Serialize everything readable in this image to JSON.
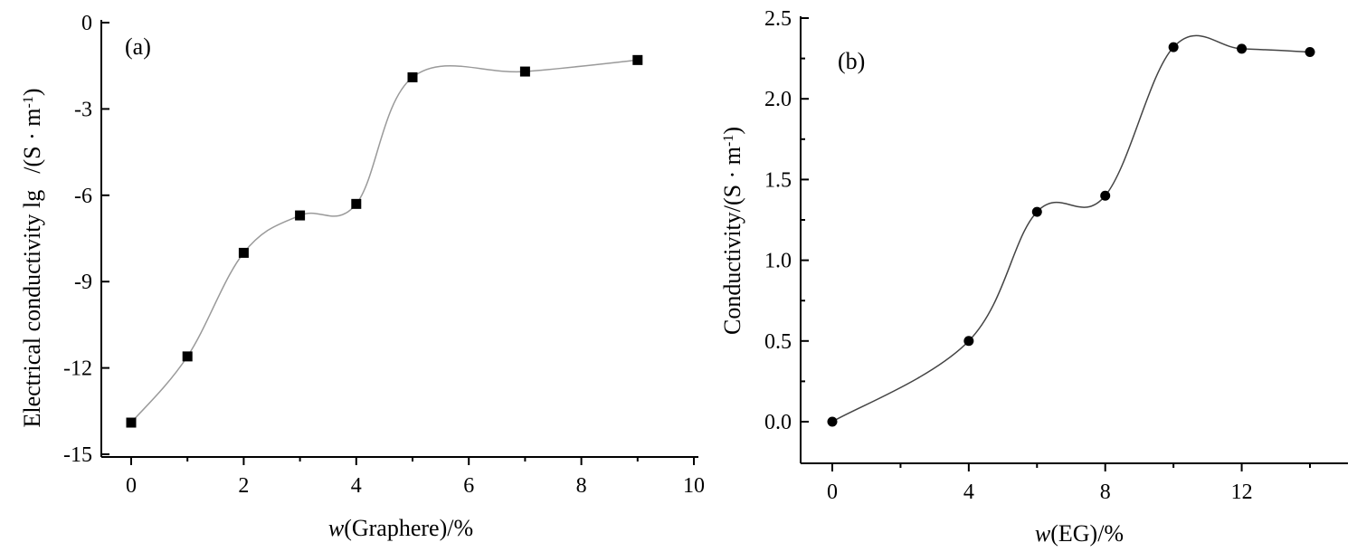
{
  "chart_data": [
    {
      "type": "scatter",
      "panel_label": "(a)",
      "xlabel_italic": "w",
      "xlabel_rest": "(Graphere)/%",
      "ylabel_main": "Electrical conductivity lg",
      "ylabel_unit_prefix": "/(S · m",
      "ylabel_unit_sup": "-1",
      "ylabel_unit_suffix": ")",
      "xlim": [
        -0.5,
        10
      ],
      "ylim": [
        -15,
        0
      ],
      "xticks": [
        0,
        2,
        4,
        6,
        8,
        10
      ],
      "xtick_labels": [
        "0",
        "2",
        "4",
        "6",
        "8",
        "10"
      ],
      "yticks": [
        -15,
        -12,
        -9,
        -6,
        -3,
        0
      ],
      "ytick_labels": [
        "-15",
        "-12",
        "-9",
        "-6",
        "-3",
        "0"
      ],
      "marker": "square",
      "curve_color": "#9a9a9a",
      "x": [
        0,
        1,
        2,
        3,
        4,
        5,
        7,
        9
      ],
      "y": [
        -13.9,
        -11.6,
        -8.0,
        -6.7,
        -6.3,
        -1.9,
        -1.7,
        -1.3
      ]
    },
    {
      "type": "scatter",
      "panel_label": "(b)",
      "xlabel_italic": "w",
      "xlabel_rest": "(EG)/%",
      "ylabel_main": "Conductivity/(S · m",
      "ylabel_unit_sup": "-1",
      "ylabel_unit_suffix": ")",
      "xlim": [
        -0.5,
        15
      ],
      "ylim": [
        -0.25,
        2.5
      ],
      "xticks": [
        0,
        4,
        8,
        12
      ],
      "xtick_labels": [
        "0",
        "4",
        "8",
        "12"
      ],
      "yticks": [
        0.0,
        0.5,
        1.0,
        1.5,
        2.0,
        2.5
      ],
      "ytick_labels": [
        "0.0",
        "0.5",
        "1.0",
        "1.5",
        "2.0",
        "2.5"
      ],
      "marker": "circle",
      "curve_color": "#444444",
      "x": [
        0,
        4,
        6,
        8,
        10,
        12,
        14
      ],
      "y": [
        0.0,
        0.5,
        1.3,
        1.4,
        2.32,
        2.31,
        2.29
      ]
    }
  ]
}
